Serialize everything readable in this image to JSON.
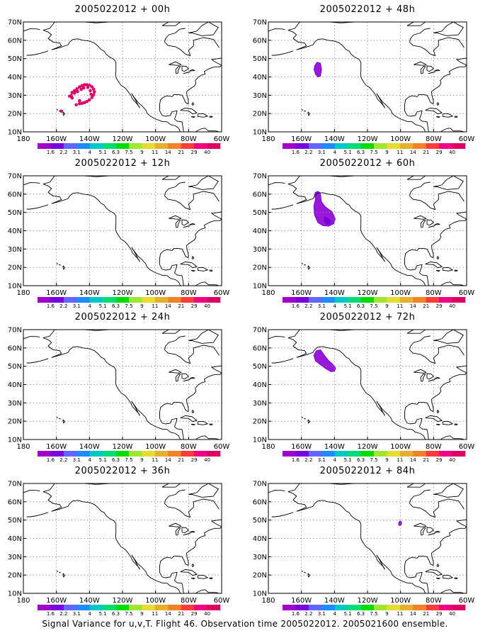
{
  "caption": "Signal Variance for u,v,T. Flight 46. Observation time 2005022012. 2005021600 ensemble.",
  "axes": {
    "lat_labels": [
      "10N",
      "20N",
      "30N",
      "40N",
      "50N",
      "60N",
      "70N"
    ],
    "lon_labels": [
      "180",
      "160W",
      "140W",
      "120W",
      "100W",
      "80W",
      "60W"
    ]
  },
  "colorbar": {
    "labels": [
      "1.6",
      "2.2",
      "3.1",
      "4",
      "5.1",
      "6.3",
      "7.5",
      "9",
      "11",
      "14",
      "21",
      "29",
      "40"
    ],
    "colors": [
      "#a000c8",
      "#7800dc",
      "#6464ff",
      "#1e8cff",
      "#00c8c8",
      "#00dc78",
      "#00dc00",
      "#a0e632",
      "#e6dc32",
      "#e6af2d",
      "#f08228",
      "#fa3c3c",
      "#f00082",
      "#dc0064"
    ]
  },
  "panels": [
    {
      "title": "2005022012 + 00h",
      "feature": "ring-00h"
    },
    {
      "title": "2005022012 + 48h",
      "feature": "blob-48h"
    },
    {
      "title": "2005022012 + 12h",
      "feature": "none"
    },
    {
      "title": "2005022012 + 60h",
      "feature": "blob-60h"
    },
    {
      "title": "2005022012 + 24h",
      "feature": "none"
    },
    {
      "title": "2005022012 + 72h",
      "feature": "blob-72h"
    },
    {
      "title": "2005022012 + 36h",
      "feature": "none"
    },
    {
      "title": "2005022012 + 84h",
      "feature": "dot-84h"
    }
  ]
}
